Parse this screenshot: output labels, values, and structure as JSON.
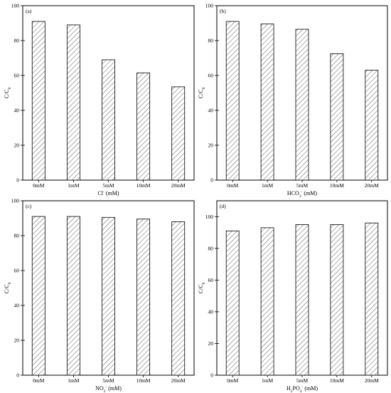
{
  "colors": {
    "frame": "#000000",
    "hatch": "#333333",
    "bar_fill": "#ffffff"
  },
  "chart_data": [
    {
      "type": "bar",
      "panel": "(a)",
      "categories": [
        "0mM",
        "1mM",
        "5mM",
        "10mM",
        "20mM"
      ],
      "values": [
        91,
        89,
        69,
        61.5,
        53.5
      ],
      "xlabel": {
        "base": "Cl",
        "sup": "-",
        "sub": "",
        "tail": " (mM)"
      },
      "ylabel": {
        "base": "C/C",
        "sub": "0"
      },
      "ylim": [
        0,
        100
      ],
      "yticks": [
        0,
        20,
        40,
        60,
        80,
        100
      ],
      "pattern": "diagonal-hatch"
    },
    {
      "type": "bar",
      "panel": "(b)",
      "categories": [
        "0mM",
        "1mM",
        "5mM",
        "10mM",
        "20mM"
      ],
      "values": [
        91,
        89.5,
        86.5,
        72.5,
        63
      ],
      "xlabel": {
        "base": "HCO",
        "sub": "3",
        "sup": "-",
        "tail": " (mM)"
      },
      "ylabel": {
        "base": "C/C",
        "sub": "0"
      },
      "ylim": [
        0,
        100
      ],
      "yticks": [
        0,
        20,
        40,
        60,
        80,
        100
      ],
      "pattern": "diagonal-hatch"
    },
    {
      "type": "bar",
      "panel": "(c)",
      "categories": [
        "0mM",
        "1mM",
        "5mM",
        "10mM",
        "20mM"
      ],
      "values": [
        91,
        91,
        90.5,
        89.5,
        88
      ],
      "xlabel": {
        "base": "NO",
        "sub": "3",
        "sup": "-",
        "tail": " (mM)"
      },
      "ylabel": {
        "base": "C/C",
        "sub": "0"
      },
      "ylim": [
        0,
        100
      ],
      "yticks": [
        0,
        20,
        40,
        60,
        80,
        100
      ],
      "pattern": "diagonal-hatch"
    },
    {
      "type": "bar",
      "panel": "(d)",
      "categories": [
        "0mM",
        "1mM",
        "5mM",
        "10mM",
        "20mM"
      ],
      "values": [
        91,
        93,
        95,
        95,
        96
      ],
      "xlabel": {
        "base": "H",
        "sub": "2",
        "mid": "PO",
        "sub2": "4",
        "sup": "-",
        "tail": " (mM)"
      },
      "ylabel": {
        "base": "C/C",
        "sub": "0"
      },
      "ylim": [
        0,
        110
      ],
      "yticks": [
        0,
        20,
        40,
        60,
        80,
        100
      ],
      "pattern": "diagonal-hatch"
    }
  ]
}
